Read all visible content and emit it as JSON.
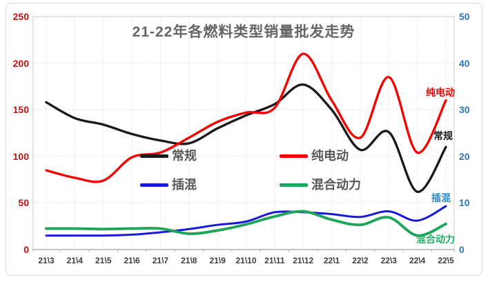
{
  "chart_data": {
    "type": "line",
    "title": "21-22年各燃料类型销量批发走势",
    "smooth": true,
    "grid": true,
    "legend_position": "center-inside",
    "categories": [
      "21\\3",
      "21\\4",
      "21\\5",
      "21\\6",
      "21\\7",
      "21\\8",
      "21\\9",
      "21\\10",
      "21\\11",
      "21\\12",
      "22\\1",
      "22\\2",
      "22\\3",
      "22\\4",
      "22\\5"
    ],
    "left_axis": {
      "min": 0,
      "max": 250,
      "step": 50,
      "ticks": [
        "250",
        "200",
        "150",
        "100",
        "50",
        "0"
      ],
      "label_color": "#c31414"
    },
    "right_axis": {
      "min": 0,
      "max": 50,
      "step": 10,
      "ticks": [
        "50",
        "40",
        "30",
        "20",
        "10",
        "0"
      ],
      "label_color": "#2e75b6"
    },
    "series": [
      {
        "name": "常规",
        "axis": "left",
        "color": "#1b1b1b",
        "values": [
          158,
          141,
          134,
          124,
          117,
          114,
          130,
          144,
          156,
          177,
          150,
          107,
          126,
          62,
          110
        ]
      },
      {
        "name": "纯电动",
        "axis": "left",
        "color": "#fa0000",
        "values": [
          85,
          77,
          74,
          99,
          104,
          120,
          137,
          147,
          152,
          210,
          160,
          120,
          185,
          104,
          160
        ]
      },
      {
        "name": "插混",
        "axis": "right",
        "color": "#1818dd",
        "values": [
          3.0,
          3.0,
          3.0,
          3.2,
          3.7,
          4.4,
          5.3,
          6.0,
          8.0,
          8.0,
          7.6,
          7.0,
          8.2,
          6.2,
          9.3
        ]
      },
      {
        "name": "混合动力",
        "axis": "right",
        "color": "#1ea55a",
        "values": [
          4.5,
          4.5,
          4.4,
          4.5,
          4.5,
          3.4,
          4.1,
          5.4,
          7.1,
          8.2,
          6.4,
          5.3,
          6.9,
          3.0,
          5.5
        ]
      }
    ],
    "legend": {
      "items": [
        {
          "label": "常规",
          "color": "#1b1b1b"
        },
        {
          "label": "纯电动",
          "color": "#fa0000"
        },
        {
          "label": "插混",
          "color": "#1818dd"
        },
        {
          "label": "混合动力",
          "color": "#1ea55a"
        }
      ]
    },
    "end_labels": [
      {
        "text": "纯电动",
        "color": "#fa0000"
      },
      {
        "text": "常规",
        "color": "#1b1b1b"
      },
      {
        "text": "插混",
        "color": "#2e86c4"
      },
      {
        "text": "混合动力",
        "color": "#21ae66"
      }
    ]
  }
}
